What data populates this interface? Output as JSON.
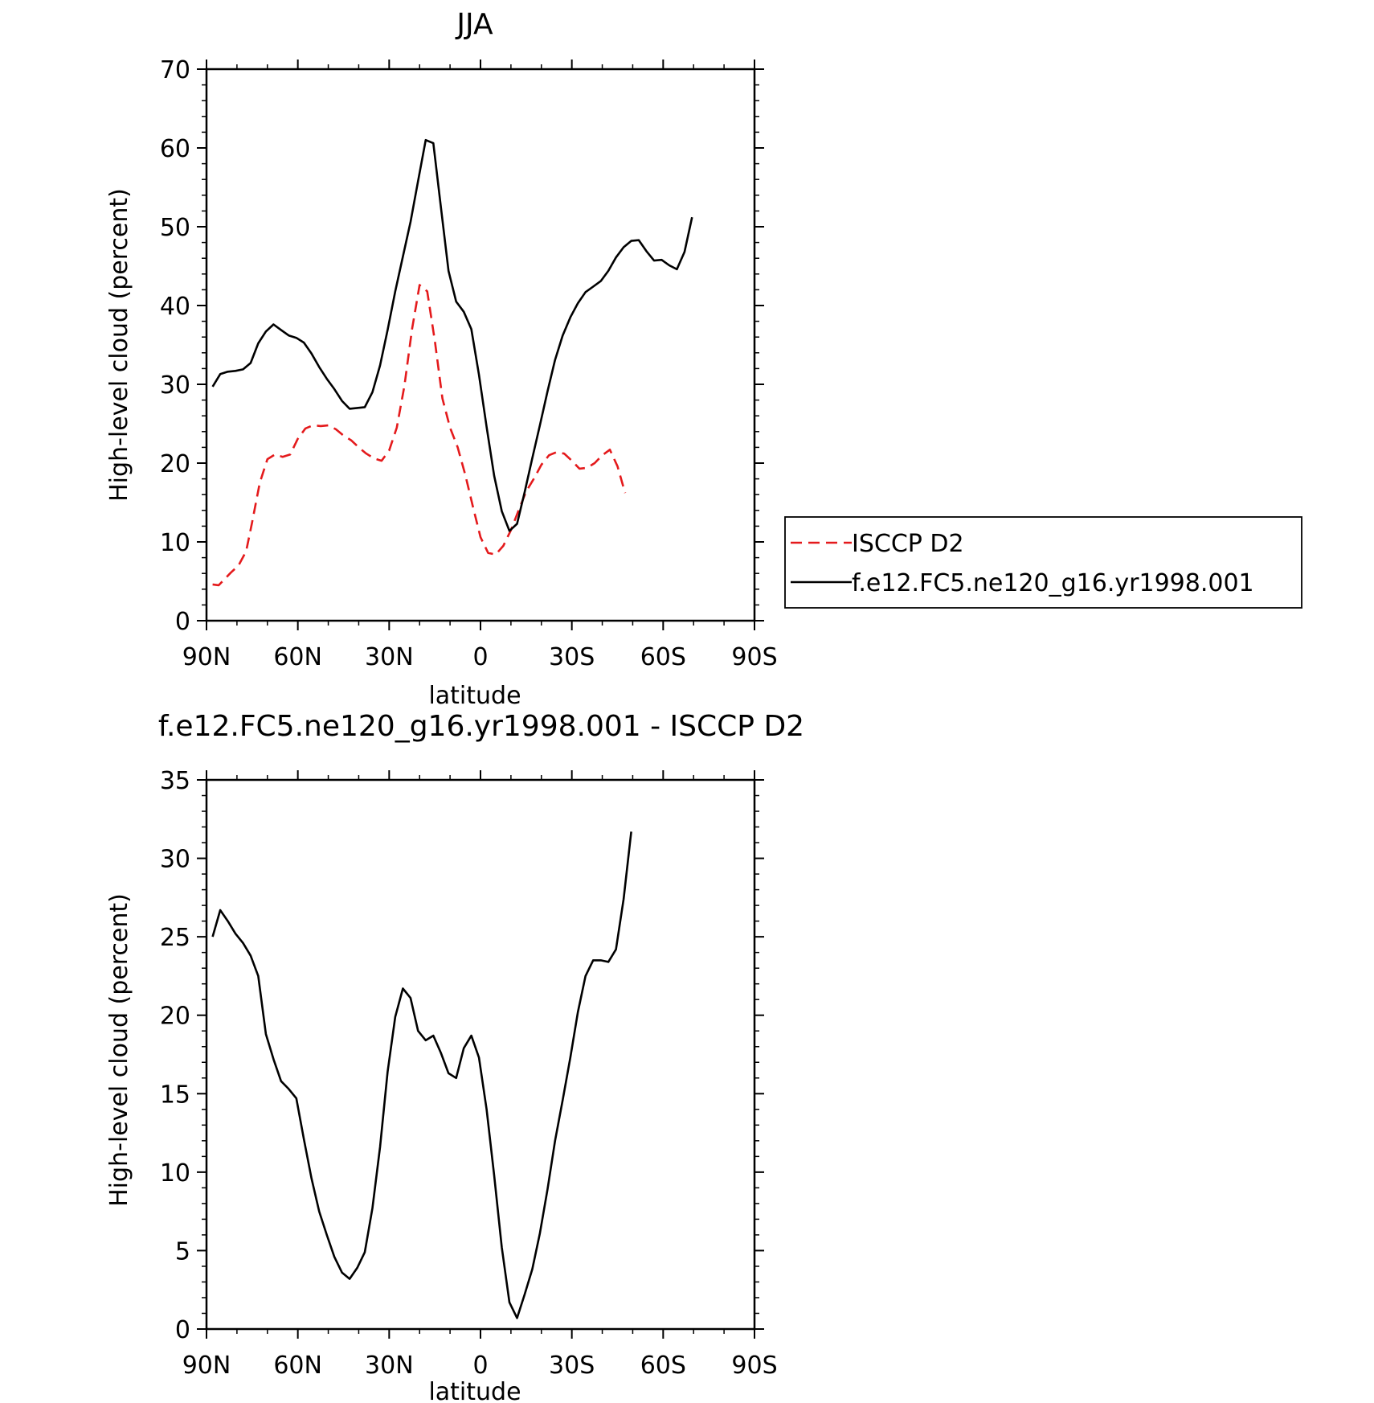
{
  "chart_data": [
    {
      "type": "line",
      "title": "JJA",
      "xlabel": "latitude",
      "ylabel": "High-level cloud (percent)",
      "xlim": [
        90,
        -90
      ],
      "ylim": [
        0,
        70
      ],
      "x_ticks": [
        {
          "value": 90,
          "label": "90N"
        },
        {
          "value": 60,
          "label": "60N"
        },
        {
          "value": 30,
          "label": "30N"
        },
        {
          "value": 0,
          "label": "0"
        },
        {
          "value": -30,
          "label": "30S"
        },
        {
          "value": -60,
          "label": "60S"
        },
        {
          "value": -90,
          "label": "90S"
        }
      ],
      "y_ticks": [
        0,
        10,
        20,
        30,
        40,
        50,
        60,
        70
      ],
      "legend_position": "right",
      "series": [
        {
          "name": "ISCCP D2",
          "color": "#e41a1c",
          "dash": "dashed",
          "points": [
            [
              88,
              4.6
            ],
            [
              86,
              4.5
            ],
            [
              84,
              5.3
            ],
            [
              82,
              6.1
            ],
            [
              79.5,
              7.0
            ],
            [
              77,
              8.8
            ],
            [
              75,
              12.5
            ],
            [
              72.5,
              17.5
            ],
            [
              70,
              20.5
            ],
            [
              67.5,
              21.1
            ],
            [
              65,
              20.8
            ],
            [
              62.5,
              21.1
            ],
            [
              60,
              23.1
            ],
            [
              57.5,
              24.4
            ],
            [
              55,
              24.8
            ],
            [
              52.5,
              24.7
            ],
            [
              50,
              24.8
            ],
            [
              47.5,
              24.3
            ],
            [
              45,
              23.5
            ],
            [
              42.5,
              22.9
            ],
            [
              40,
              22.0
            ],
            [
              37.5,
              21.2
            ],
            [
              35,
              20.6
            ],
            [
              32.5,
              20.3
            ],
            [
              30,
              21.6
            ],
            [
              27.5,
              24.5
            ],
            [
              25,
              29.8
            ],
            [
              22.5,
              37.0
            ],
            [
              20,
              42.6
            ],
            [
              17.5,
              41.8
            ],
            [
              15,
              35.5
            ],
            [
              12.5,
              28.2
            ],
            [
              10,
              24.5
            ],
            [
              7.5,
              22.0
            ],
            [
              5,
              18.5
            ],
            [
              2.5,
              14.5
            ],
            [
              0,
              10.6
            ],
            [
              -2.5,
              8.6
            ],
            [
              -5,
              8.4
            ],
            [
              -7.5,
              9.5
            ],
            [
              -10,
              11.5
            ],
            [
              -12.5,
              14.0
            ],
            [
              -15,
              16.4
            ],
            [
              -17.5,
              18.0
            ],
            [
              -20,
              19.8
            ],
            [
              -22.5,
              21.0
            ],
            [
              -25,
              21.4
            ],
            [
              -27.5,
              21.2
            ],
            [
              -30,
              20.3
            ],
            [
              -32.5,
              19.3
            ],
            [
              -35,
              19.4
            ],
            [
              -37.5,
              20.0
            ],
            [
              -40,
              21.0
            ],
            [
              -42.5,
              21.7
            ],
            [
              -45,
              19.6
            ],
            [
              -47.5,
              16.2
            ]
          ]
        },
        {
          "name": "f.e12.FC5.ne120_g16.yr1998.001",
          "color": "#000000",
          "dash": "solid",
          "points": [
            [
              88,
              29.7
            ],
            [
              85.5,
              31.3
            ],
            [
              83,
              31.6
            ],
            [
              80.5,
              31.7
            ],
            [
              78,
              31.9
            ],
            [
              75.5,
              32.7
            ],
            [
              73,
              35.2
            ],
            [
              70.5,
              36.7
            ],
            [
              68,
              37.6
            ],
            [
              65.5,
              36.9
            ],
            [
              63,
              36.2
            ],
            [
              60.5,
              35.9
            ],
            [
              58,
              35.3
            ],
            [
              55.5,
              33.9
            ],
            [
              53,
              32.2
            ],
            [
              50.5,
              30.7
            ],
            [
              48,
              29.4
            ],
            [
              45.5,
              27.9
            ],
            [
              43,
              26.9
            ],
            [
              40.5,
              27.0
            ],
            [
              38,
              27.1
            ],
            [
              35.5,
              29.0
            ],
            [
              33,
              32.4
            ],
            [
              30.5,
              36.9
            ],
            [
              28,
              41.8
            ],
            [
              25.5,
              46.2
            ],
            [
              23,
              50.6
            ],
            [
              20.5,
              55.8
            ],
            [
              18,
              61.0
            ],
            [
              15.5,
              60.6
            ],
            [
              13,
              52.5
            ],
            [
              10.5,
              44.4
            ],
            [
              8,
              40.5
            ],
            [
              5.5,
              39.2
            ],
            [
              3,
              37.0
            ],
            [
              0.5,
              31.2
            ],
            [
              -2,
              24.6
            ],
            [
              -4.5,
              18.4
            ],
            [
              -7,
              13.9
            ],
            [
              -9.5,
              11.4
            ],
            [
              -12,
              12.3
            ],
            [
              -14.5,
              16.3
            ],
            [
              -17,
              20.6
            ],
            [
              -19.5,
              24.8
            ],
            [
              -22,
              29.1
            ],
            [
              -24.5,
              33.1
            ],
            [
              -27,
              36.2
            ],
            [
              -29.5,
              38.5
            ],
            [
              -32,
              40.3
            ],
            [
              -34.5,
              41.7
            ],
            [
              -37,
              42.4
            ],
            [
              -39.5,
              43.1
            ],
            [
              -42,
              44.4
            ],
            [
              -44.5,
              46.1
            ],
            [
              -47,
              47.4
            ],
            [
              -49.5,
              48.2
            ],
            [
              -52,
              48.3
            ],
            [
              -54.5,
              46.9
            ],
            [
              -57,
              45.7
            ],
            [
              -59.5,
              45.8
            ],
            [
              -62,
              45.1
            ],
            [
              -64.5,
              44.6
            ],
            [
              -67,
              46.8
            ],
            [
              -69.5,
              51.2
            ]
          ]
        }
      ]
    },
    {
      "type": "line",
      "title": "f.e12.FC5.ne120_g16.yr1998.001 - ISCCP D2",
      "xlabel": "latitude",
      "ylabel": "High-level cloud (percent)",
      "xlim": [
        90,
        -90
      ],
      "ylim": [
        0,
        35
      ],
      "x_ticks": [
        {
          "value": 90,
          "label": "90N"
        },
        {
          "value": 60,
          "label": "60N"
        },
        {
          "value": 30,
          "label": "30N"
        },
        {
          "value": 0,
          "label": "0"
        },
        {
          "value": -30,
          "label": "30S"
        },
        {
          "value": -60,
          "label": "60S"
        },
        {
          "value": -90,
          "label": "90S"
        }
      ],
      "y_ticks": [
        0,
        5,
        10,
        15,
        20,
        25,
        30,
        35
      ],
      "series": [
        {
          "color": "#000000",
          "dash": "solid",
          "points": [
            [
              88,
              25.0
            ],
            [
              85.5,
              26.7
            ],
            [
              83,
              26.0
            ],
            [
              80.5,
              25.2
            ],
            [
              78,
              24.6
            ],
            [
              75.5,
              23.8
            ],
            [
              73,
              22.5
            ],
            [
              70.5,
              18.8
            ],
            [
              68,
              17.2
            ],
            [
              65.5,
              15.8
            ],
            [
              63,
              15.3
            ],
            [
              60.5,
              14.7
            ],
            [
              58,
              12.1
            ],
            [
              55.5,
              9.6
            ],
            [
              53,
              7.5
            ],
            [
              50.5,
              6.0
            ],
            [
              48,
              4.6
            ],
            [
              45.5,
              3.6
            ],
            [
              43,
              3.2
            ],
            [
              40.5,
              3.9
            ],
            [
              38,
              4.9
            ],
            [
              35.5,
              7.7
            ],
            [
              33,
              11.6
            ],
            [
              30.5,
              16.4
            ],
            [
              28,
              19.9
            ],
            [
              25.5,
              21.7
            ],
            [
              23,
              21.1
            ],
            [
              20.5,
              19.0
            ],
            [
              18,
              18.4
            ],
            [
              15.5,
              18.7
            ],
            [
              13,
              17.6
            ],
            [
              10.5,
              16.3
            ],
            [
              8,
              16.0
            ],
            [
              5.5,
              17.9
            ],
            [
              3,
              18.7
            ],
            [
              0.5,
              17.3
            ],
            [
              -2,
              14.0
            ],
            [
              -4.5,
              9.8
            ],
            [
              -7,
              5.2
            ],
            [
              -9.5,
              1.7
            ],
            [
              -12,
              0.7
            ],
            [
              -14.5,
              2.2
            ],
            [
              -17,
              3.8
            ],
            [
              -19.5,
              6.1
            ],
            [
              -22,
              8.9
            ],
            [
              -24.5,
              12.0
            ],
            [
              -27,
              14.6
            ],
            [
              -29.5,
              17.3
            ],
            [
              -32,
              20.2
            ],
            [
              -34.5,
              22.5
            ],
            [
              -37,
              23.5
            ],
            [
              -39.5,
              23.5
            ],
            [
              -42,
              23.4
            ],
            [
              -44.5,
              24.2
            ],
            [
              -47,
              27.4
            ],
            [
              -49.5,
              31.7
            ]
          ]
        }
      ]
    }
  ]
}
